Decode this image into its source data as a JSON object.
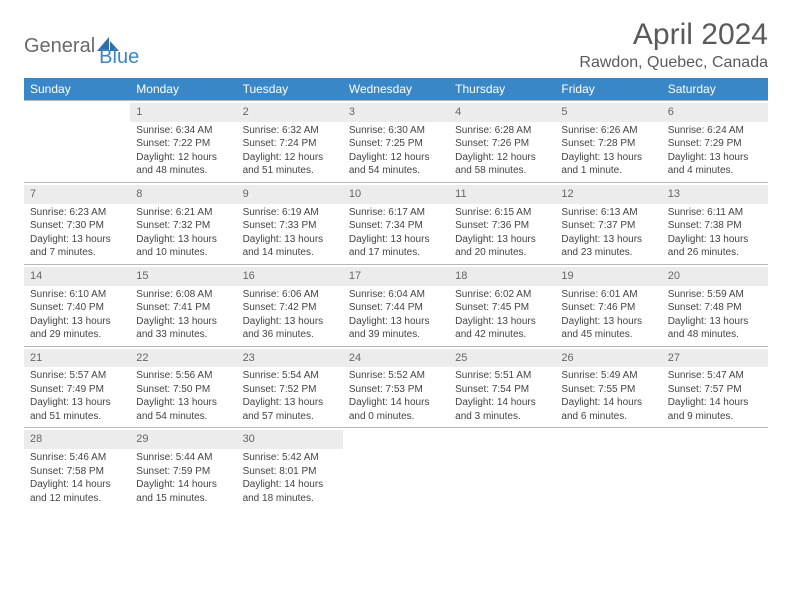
{
  "logo": {
    "gen": "General",
    "blue": "Blue"
  },
  "title": "April 2024",
  "location": "Rawdon, Quebec, Canada",
  "colors": {
    "header_bg": "#3a87c7",
    "date_bg": "#ececec",
    "border": "#b8b8b8",
    "text": "#444444"
  },
  "dayNames": [
    "Sunday",
    "Monday",
    "Tuesday",
    "Wednesday",
    "Thursday",
    "Friday",
    "Saturday"
  ],
  "weeks": [
    [
      {
        "empty": true
      },
      {
        "date": "1",
        "sunrise": "6:34 AM",
        "sunset": "7:22 PM",
        "day1": "12 hours",
        "day2": "and 48 minutes."
      },
      {
        "date": "2",
        "sunrise": "6:32 AM",
        "sunset": "7:24 PM",
        "day1": "12 hours",
        "day2": "and 51 minutes."
      },
      {
        "date": "3",
        "sunrise": "6:30 AM",
        "sunset": "7:25 PM",
        "day1": "12 hours",
        "day2": "and 54 minutes."
      },
      {
        "date": "4",
        "sunrise": "6:28 AM",
        "sunset": "7:26 PM",
        "day1": "12 hours",
        "day2": "and 58 minutes."
      },
      {
        "date": "5",
        "sunrise": "6:26 AM",
        "sunset": "7:28 PM",
        "day1": "13 hours",
        "day2": "and 1 minute."
      },
      {
        "date": "6",
        "sunrise": "6:24 AM",
        "sunset": "7:29 PM",
        "day1": "13 hours",
        "day2": "and 4 minutes."
      }
    ],
    [
      {
        "date": "7",
        "sunrise": "6:23 AM",
        "sunset": "7:30 PM",
        "day1": "13 hours",
        "day2": "and 7 minutes."
      },
      {
        "date": "8",
        "sunrise": "6:21 AM",
        "sunset": "7:32 PM",
        "day1": "13 hours",
        "day2": "and 10 minutes."
      },
      {
        "date": "9",
        "sunrise": "6:19 AM",
        "sunset": "7:33 PM",
        "day1": "13 hours",
        "day2": "and 14 minutes."
      },
      {
        "date": "10",
        "sunrise": "6:17 AM",
        "sunset": "7:34 PM",
        "day1": "13 hours",
        "day2": "and 17 minutes."
      },
      {
        "date": "11",
        "sunrise": "6:15 AM",
        "sunset": "7:36 PM",
        "day1": "13 hours",
        "day2": "and 20 minutes."
      },
      {
        "date": "12",
        "sunrise": "6:13 AM",
        "sunset": "7:37 PM",
        "day1": "13 hours",
        "day2": "and 23 minutes."
      },
      {
        "date": "13",
        "sunrise": "6:11 AM",
        "sunset": "7:38 PM",
        "day1": "13 hours",
        "day2": "and 26 minutes."
      }
    ],
    [
      {
        "date": "14",
        "sunrise": "6:10 AM",
        "sunset": "7:40 PM",
        "day1": "13 hours",
        "day2": "and 29 minutes."
      },
      {
        "date": "15",
        "sunrise": "6:08 AM",
        "sunset": "7:41 PM",
        "day1": "13 hours",
        "day2": "and 33 minutes."
      },
      {
        "date": "16",
        "sunrise": "6:06 AM",
        "sunset": "7:42 PM",
        "day1": "13 hours",
        "day2": "and 36 minutes."
      },
      {
        "date": "17",
        "sunrise": "6:04 AM",
        "sunset": "7:44 PM",
        "day1": "13 hours",
        "day2": "and 39 minutes."
      },
      {
        "date": "18",
        "sunrise": "6:02 AM",
        "sunset": "7:45 PM",
        "day1": "13 hours",
        "day2": "and 42 minutes."
      },
      {
        "date": "19",
        "sunrise": "6:01 AM",
        "sunset": "7:46 PM",
        "day1": "13 hours",
        "day2": "and 45 minutes."
      },
      {
        "date": "20",
        "sunrise": "5:59 AM",
        "sunset": "7:48 PM",
        "day1": "13 hours",
        "day2": "and 48 minutes."
      }
    ],
    [
      {
        "date": "21",
        "sunrise": "5:57 AM",
        "sunset": "7:49 PM",
        "day1": "13 hours",
        "day2": "and 51 minutes."
      },
      {
        "date": "22",
        "sunrise": "5:56 AM",
        "sunset": "7:50 PM",
        "day1": "13 hours",
        "day2": "and 54 minutes."
      },
      {
        "date": "23",
        "sunrise": "5:54 AM",
        "sunset": "7:52 PM",
        "day1": "13 hours",
        "day2": "and 57 minutes."
      },
      {
        "date": "24",
        "sunrise": "5:52 AM",
        "sunset": "7:53 PM",
        "day1": "14 hours",
        "day2": "and 0 minutes."
      },
      {
        "date": "25",
        "sunrise": "5:51 AM",
        "sunset": "7:54 PM",
        "day1": "14 hours",
        "day2": "and 3 minutes."
      },
      {
        "date": "26",
        "sunrise": "5:49 AM",
        "sunset": "7:55 PM",
        "day1": "14 hours",
        "day2": "and 6 minutes."
      },
      {
        "date": "27",
        "sunrise": "5:47 AM",
        "sunset": "7:57 PM",
        "day1": "14 hours",
        "day2": "and 9 minutes."
      }
    ],
    [
      {
        "date": "28",
        "sunrise": "5:46 AM",
        "sunset": "7:58 PM",
        "day1": "14 hours",
        "day2": "and 12 minutes."
      },
      {
        "date": "29",
        "sunrise": "5:44 AM",
        "sunset": "7:59 PM",
        "day1": "14 hours",
        "day2": "and 15 minutes."
      },
      {
        "date": "30",
        "sunrise": "5:42 AM",
        "sunset": "8:01 PM",
        "day1": "14 hours",
        "day2": "and 18 minutes."
      },
      {
        "empty": true
      },
      {
        "empty": true
      },
      {
        "empty": true
      },
      {
        "empty": true
      }
    ]
  ]
}
